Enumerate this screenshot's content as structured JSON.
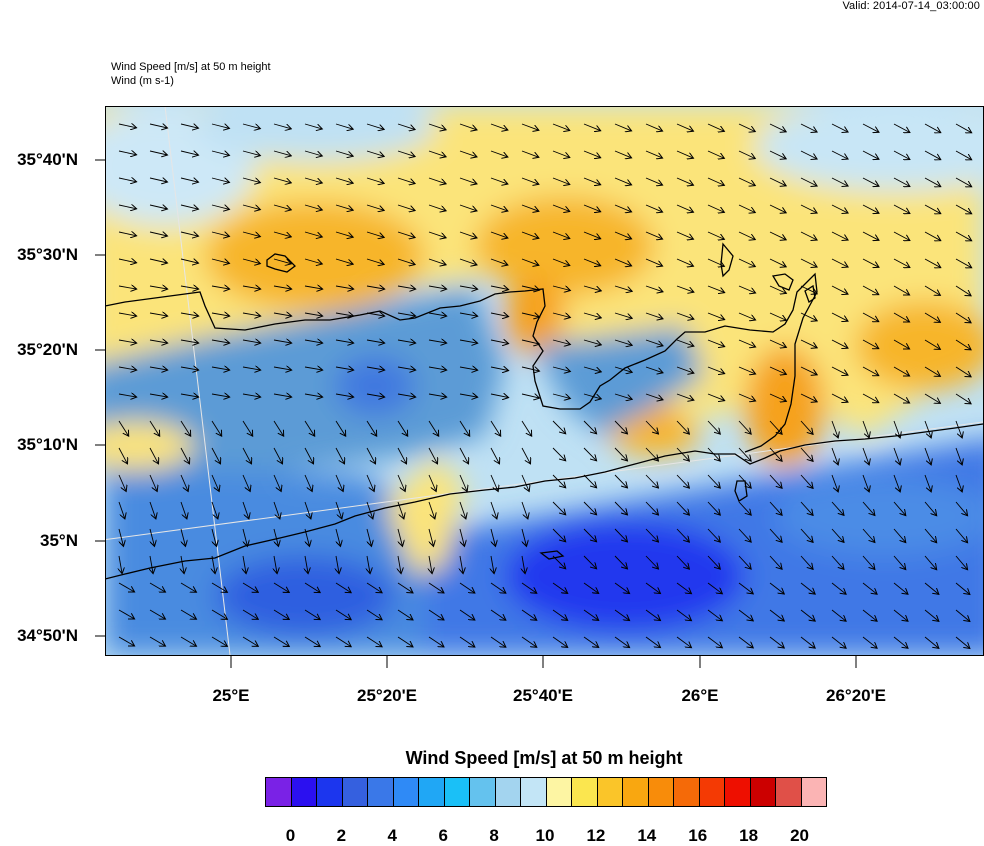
{
  "header": {
    "valid_time": "Valid: 2014-07-14_03:00:00",
    "field_title": "Wind Speed [m/s] at 50 m height",
    "vector_title": "Wind   (m s-1)"
  },
  "map": {
    "lat_labels": [
      "35°40'N",
      "35°30'N",
      "35°20'N",
      "35°10'N",
      "35°N",
      "34°50'N"
    ],
    "lon_labels": [
      "25°E",
      "25°20'E",
      "25°40'E",
      "26°E",
      "26°20'E"
    ],
    "colors": {
      "calm": "#5b9bd6",
      "moderate": "#bfe1f4",
      "strong": "#f7c33a",
      "very_strong": "#f6a11a",
      "coastline": "#000000",
      "grid": "#dcdcdc"
    }
  },
  "legend": {
    "title": "Wind Speed [m/s] at 50 m height",
    "labels": [
      "0",
      "2",
      "4",
      "6",
      "8",
      "10",
      "12",
      "14",
      "16",
      "18",
      "20"
    ],
    "colors": [
      "#7a22e6",
      "#2b10f0",
      "#1c36ee",
      "#3560df",
      "#3a78e8",
      "#2f8af6",
      "#20a7f5",
      "#1ac0f7",
      "#64c2ee",
      "#a3d4ef",
      "#c3e5f6",
      "#fdf5a3",
      "#fbe64f",
      "#fac529",
      "#f9a710",
      "#f88c0a",
      "#f56a08",
      "#f43a04",
      "#ee0f00",
      "#cc0000",
      "#e05048",
      "#fbb4b4"
    ]
  }
}
